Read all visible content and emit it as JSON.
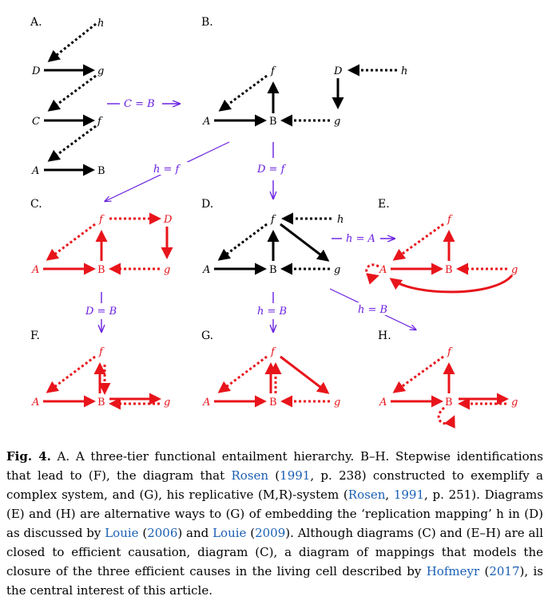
{
  "figure": {
    "panel_labels": [
      "A.",
      "B.",
      "C.",
      "D.",
      "E.",
      "F.",
      "G.",
      "H."
    ],
    "nodes": {
      "A": "A",
      "B": "B",
      "C": "C",
      "D": "D",
      "f": "f",
      "g": "g",
      "h": "h"
    },
    "rules": {
      "c_eq_b": "C = B",
      "h_eq_f": "h = f",
      "d_eq_f": "D = f",
      "d_eq_b": "D = B",
      "h_eq_a": "h = A",
      "h_eq_b_g": "h = B",
      "h_eq_b_h": "h = B"
    },
    "colors": {
      "black": "#000000",
      "red": "#e8141b",
      "purple": "#6a1fe0",
      "link": "#1a5fb4"
    }
  },
  "caption": {
    "label": "Fig. 4.",
    "seg1": " A. A three-tier functional entailment hierarchy. B–H. Stepwise identifications that lead to (F), the diagram that ",
    "cite1a": "Rosen",
    "seg2": " (",
    "cite1b": "1991",
    "seg3": ", p. 238) constructed to exemplify a complex system, and (G), his replicative (M,R)-system (",
    "cite2a": "Rosen",
    "seg4": ", ",
    "cite2b": "1991",
    "seg5": ", p. 251). Diagrams (E) and (H) are alternative ways to (G) of embedding the ‘replication mapping’ h in (D) as discussed by ",
    "cite3a": "Louie",
    "seg6": " (",
    "cite3b": "2006",
    "seg7": ") and ",
    "cite4a": "Louie",
    "seg8": " (",
    "cite4b": "2009",
    "seg9": "). Although diagrams (C) and (E–H) are all closed to efficient causation, diagram (C), a diagram of mappings that models the closure of the three efficient causes in the living cell described by ",
    "cite5a": "Hofmeyr",
    "seg10": " (",
    "cite5b": "2017",
    "seg11": "), is the central interest of this article."
  }
}
